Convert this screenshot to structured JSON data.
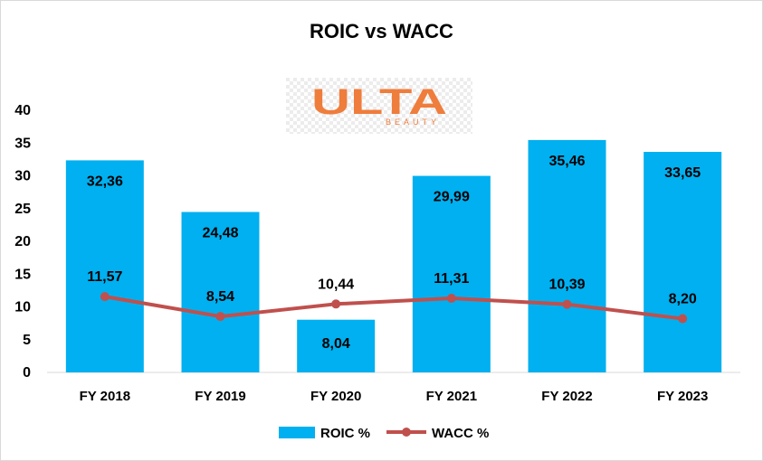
{
  "colors": {
    "bar": "#00b0f0",
    "line": "#c0504d",
    "axis": "#d9d9d9",
    "text": "#000000",
    "logo_orange": "#ef7d3c"
  },
  "logo": {
    "icon": "ulta-beauty-logo",
    "text": "ULTA",
    "subtext": "BEAUTY"
  },
  "chart_data": {
    "type": "bar",
    "title": "ROIC vs WACC",
    "categories": [
      "FY 2018",
      "FY 2019",
      "FY 2020",
      "FY 2021",
      "FY 2022",
      "FY 2023"
    ],
    "series": [
      {
        "name": "ROIC %",
        "type": "bar",
        "values": [
          32.36,
          24.48,
          8.04,
          29.99,
          35.46,
          33.65
        ],
        "labels": [
          "32,36",
          "24,48",
          "8,04",
          "29,99",
          "35,46",
          "33,65"
        ]
      },
      {
        "name": "WACC %",
        "type": "line",
        "values": [
          11.57,
          8.54,
          10.44,
          11.31,
          10.39,
          8.2
        ],
        "labels": [
          "11,57",
          "8,54",
          "10,44",
          "11,31",
          "10,39",
          "8,20"
        ]
      }
    ],
    "ylim": [
      0,
      40
    ],
    "yticks": [
      "0",
      "5",
      "10",
      "15",
      "20",
      "25",
      "30",
      "35",
      "40"
    ],
    "grid": false,
    "legend": "bottom"
  }
}
